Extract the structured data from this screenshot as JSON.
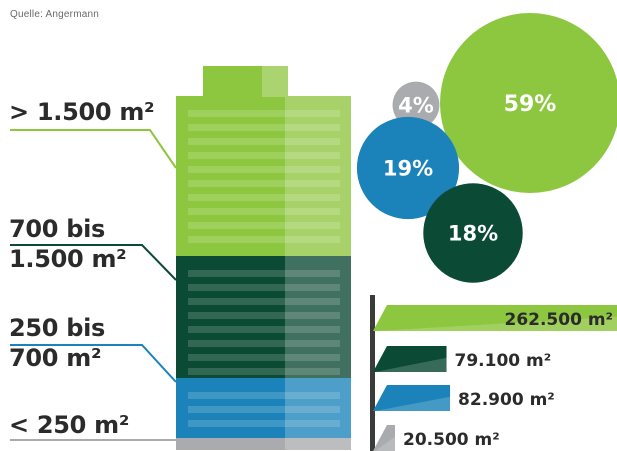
{
  "source": "Quelle: Angermann",
  "colors": {
    "green_light": "#8dc63f",
    "green_dark": "#0b4a34",
    "blue": "#1b83b9",
    "grey": "#a9abae"
  },
  "chart_data": [
    {
      "type": "stacked-bar",
      "categories": [
        "> 1.500 m²",
        "700 bis 1.500 m²",
        "250 bis 700 m²",
        "< 250 m²"
      ],
      "category_lines": [
        [
          "> 1.500 m²"
        ],
        [
          "700 bis",
          "1.500 m²"
        ],
        [
          "250 bis",
          "700 m²"
        ],
        [
          "< 250 m²"
        ]
      ],
      "values": [
        59,
        18,
        19,
        4
      ],
      "unit": "%"
    },
    {
      "type": "bubble",
      "labels": [
        "4%",
        "59%",
        "19%",
        "18%"
      ],
      "values": [
        4,
        59,
        19,
        18
      ]
    },
    {
      "type": "bar",
      "orientation": "horizontal",
      "labels": [
        "262.500 m²",
        "79.100 m²",
        "82.900 m²",
        "20.500 m²"
      ],
      "values": [
        262500,
        79100,
        82900,
        20500
      ],
      "unit": "m²"
    }
  ]
}
